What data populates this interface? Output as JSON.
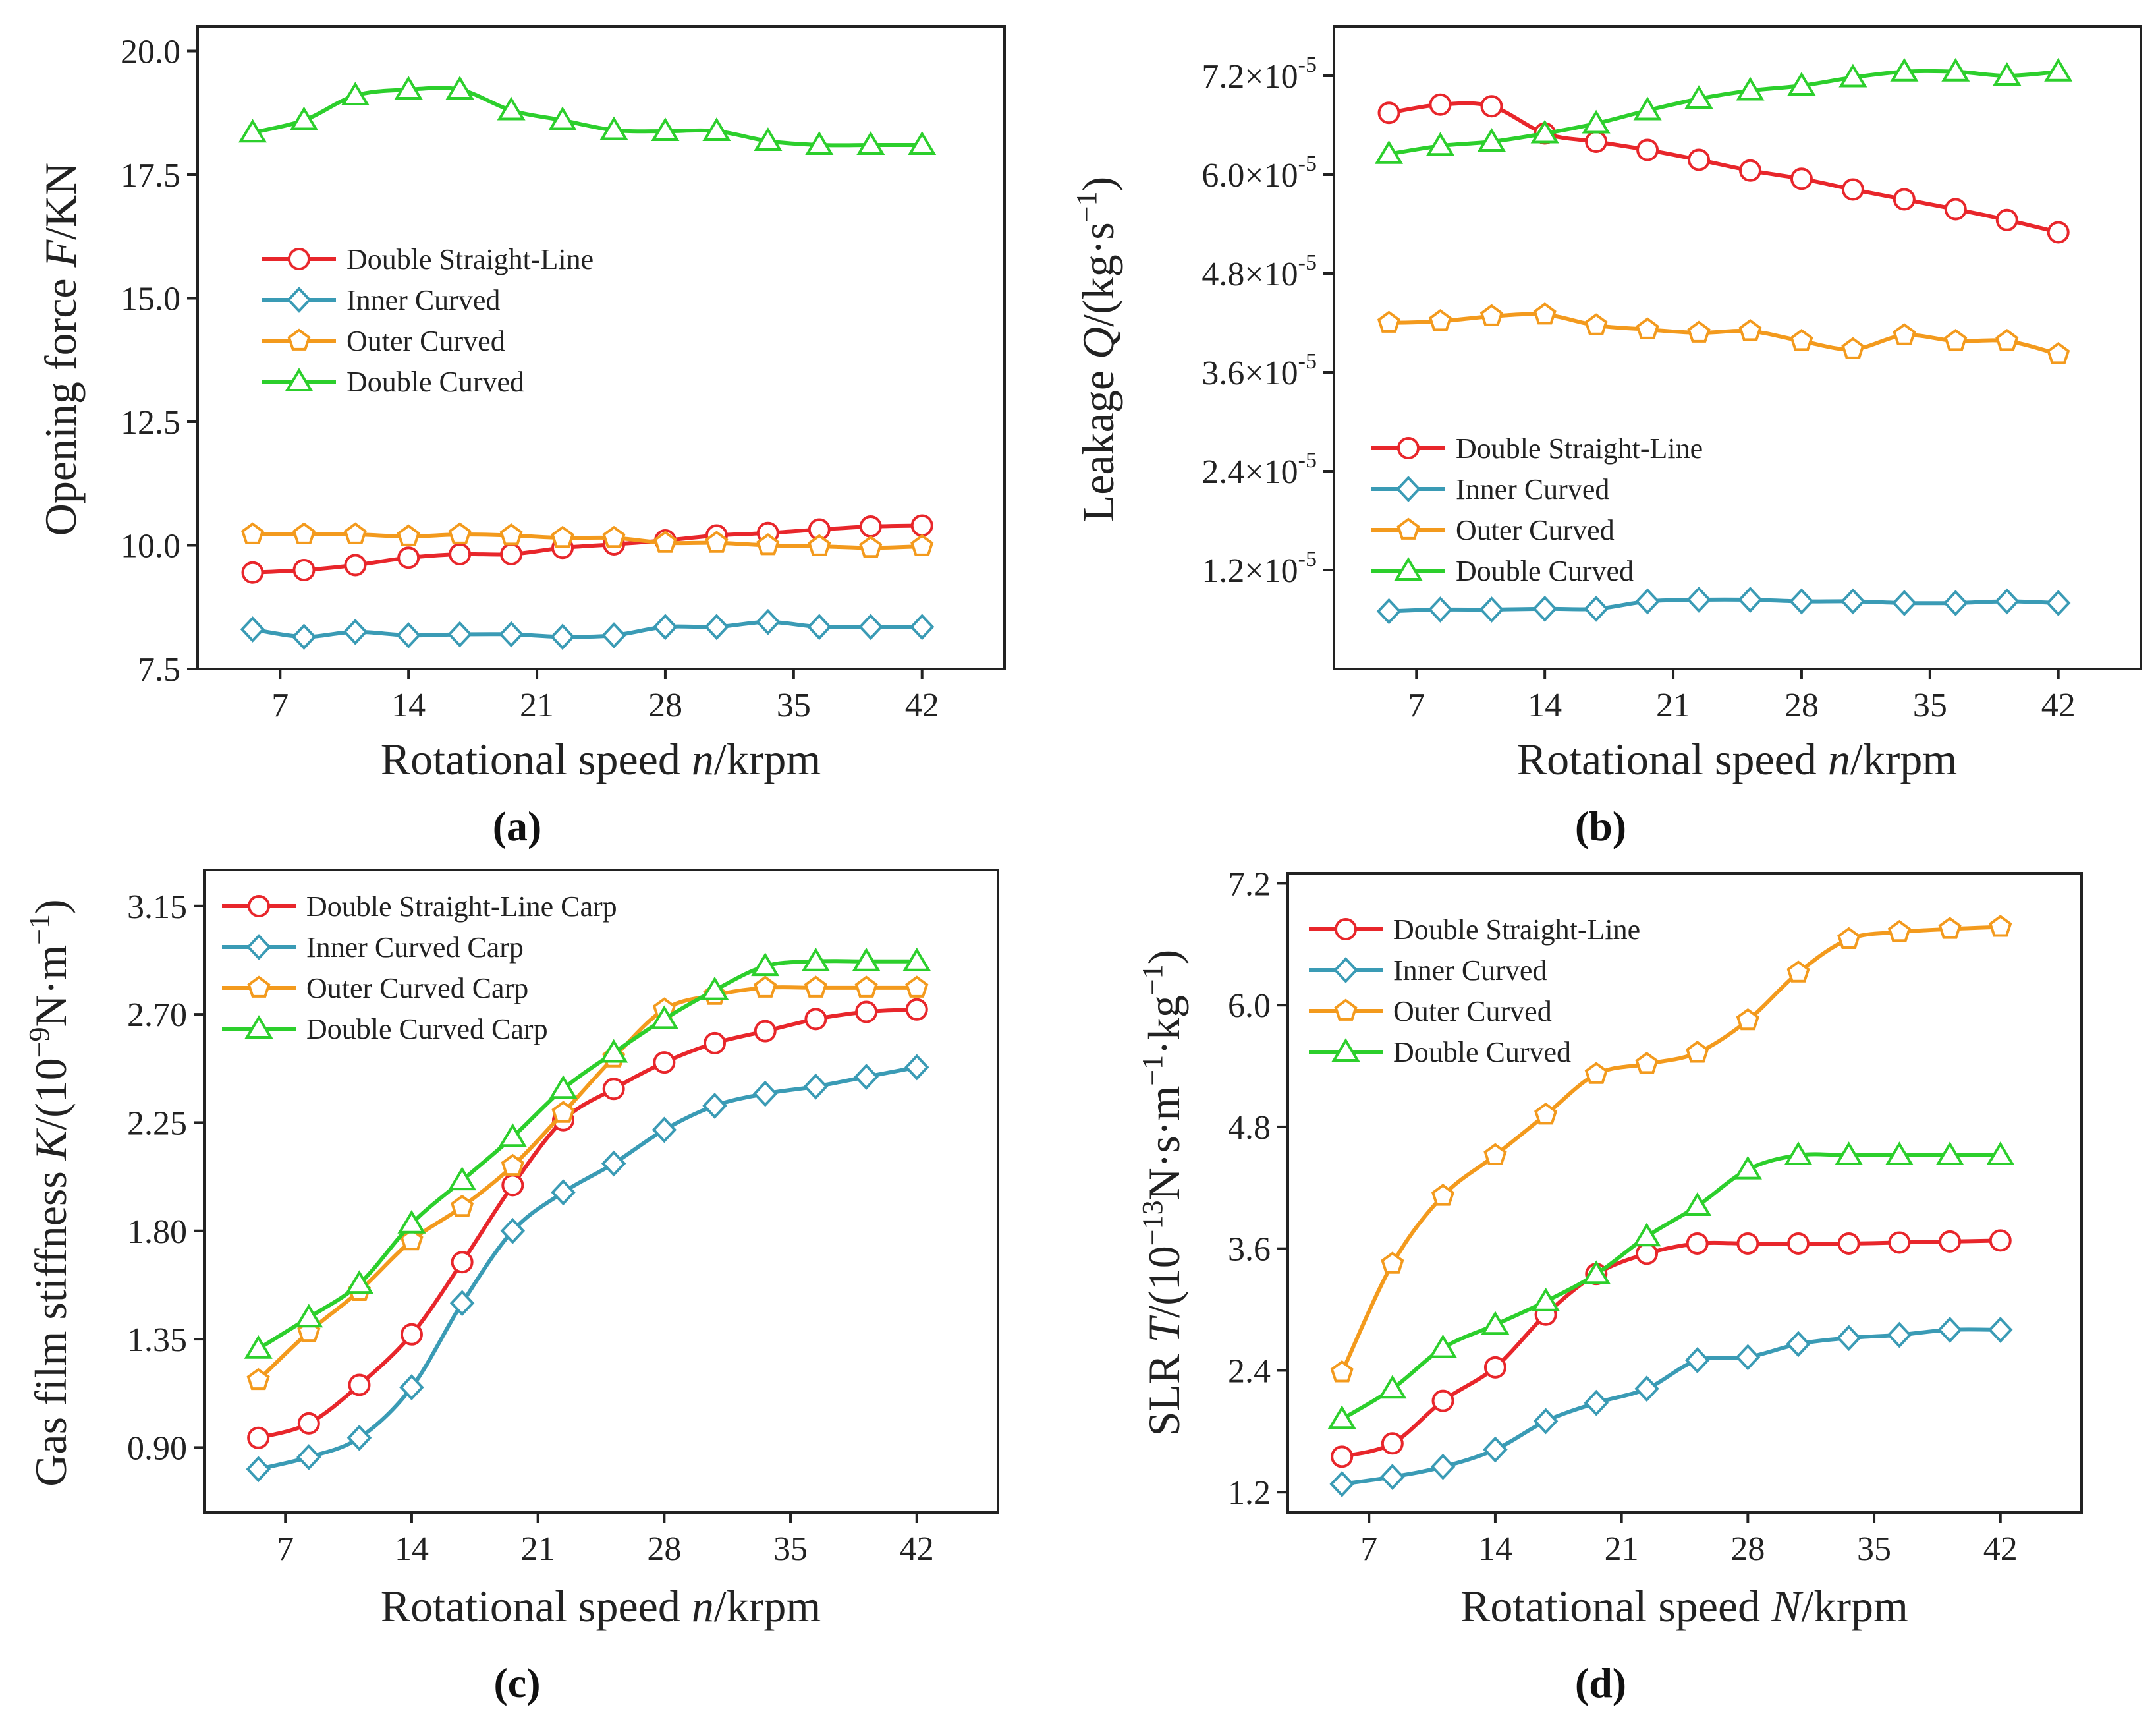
{
  "colors": {
    "double_straight_line": "#e8262b",
    "inner_curved": "#3a9bb5",
    "outer_curved": "#f39a1d",
    "double_curved": "#2ccf2c"
  },
  "chart_data": [
    {
      "panel": "(a)",
      "type": "line",
      "xlabel": {
        "pre": "Rotational speed ",
        "var": "n",
        "post": "/krpm"
      },
      "ylabel": {
        "pre": "Opening force ",
        "var": "F",
        "post": "/KN"
      },
      "xlim": [
        2.5,
        46.5
      ],
      "ylim": [
        7.5,
        20.5
      ],
      "xticks": [
        7,
        14,
        21,
        28,
        35,
        42
      ],
      "xtick_labels": [
        "7",
        "14",
        "21",
        "28",
        "35",
        "42"
      ],
      "yticks": [
        7.5,
        10.0,
        12.5,
        15.0,
        17.5,
        20.0
      ],
      "ytick_labels": [
        "7.5",
        "10.0",
        "12.5",
        "15.0",
        "17.5",
        "20.0"
      ],
      "x": [
        5.5,
        8.3,
        11.1,
        14.0,
        16.8,
        19.6,
        22.4,
        25.2,
        28.0,
        30.8,
        33.6,
        36.4,
        39.2,
        42.0
      ],
      "legend": {
        "position": "center-left"
      },
      "series": [
        {
          "name": "Double Straight-Line",
          "marker": "circle",
          "color_key": "double_straight_line",
          "values": [
            9.45,
            9.5,
            9.6,
            9.75,
            9.82,
            9.82,
            9.95,
            10.02,
            10.1,
            10.2,
            10.25,
            10.32,
            10.38,
            10.4
          ]
        },
        {
          "name": "Inner Curved",
          "marker": "diamond",
          "color_key": "inner_curved",
          "values": [
            8.3,
            8.15,
            8.25,
            8.18,
            8.2,
            8.2,
            8.15,
            8.18,
            8.35,
            8.35,
            8.45,
            8.35,
            8.35,
            8.35
          ]
        },
        {
          "name": "Outer Curved",
          "marker": "pentagon",
          "color_key": "outer_curved",
          "values": [
            10.22,
            10.22,
            10.22,
            10.18,
            10.22,
            10.2,
            10.15,
            10.15,
            10.05,
            10.05,
            10.0,
            9.98,
            9.95,
            9.98
          ]
        },
        {
          "name": "Double Curved",
          "marker": "triangle",
          "color_key": "double_curved",
          "values": [
            18.35,
            18.6,
            19.1,
            19.22,
            19.22,
            18.8,
            18.6,
            18.4,
            18.38,
            18.38,
            18.18,
            18.1,
            18.1,
            18.1
          ]
        }
      ]
    },
    {
      "panel": "(b)",
      "type": "line",
      "xlabel": {
        "pre": "Rotational speed ",
        "var": "n",
        "post": "/krpm"
      },
      "ylabel": {
        "pre": "Leakage ",
        "var": "Q",
        "post": "/(kg·s",
        "sup": "−1",
        "close": ")"
      },
      "y_multiplier_exponent": "-5",
      "xlim": [
        2.5,
        46.5
      ],
      "ylim": [
        0.0,
        7.8
      ],
      "xticks": [
        7,
        14,
        21,
        28,
        35,
        42
      ],
      "xtick_labels": [
        "7",
        "14",
        "21",
        "28",
        "35",
        "42"
      ],
      "yticks": [
        1.2,
        2.4,
        3.6,
        4.8,
        6.0,
        7.2
      ],
      "ytick_labels": [
        "1.2×10",
        "2.4×10",
        "3.6×10",
        "4.8×10",
        "6.0×10",
        "7.2×10"
      ],
      "x": [
        5.5,
        8.3,
        11.1,
        14.0,
        16.8,
        19.6,
        22.4,
        25.2,
        28.0,
        30.8,
        33.6,
        36.4,
        39.2,
        42.0
      ],
      "legend": {
        "position": "bottom-left"
      },
      "series": [
        {
          "name": "Double Straight-Line",
          "marker": "circle",
          "color_key": "double_straight_line",
          "values": [
            6.75,
            6.85,
            6.83,
            6.5,
            6.4,
            6.3,
            6.18,
            6.05,
            5.95,
            5.82,
            5.7,
            5.58,
            5.45,
            5.3
          ]
        },
        {
          "name": "Inner Curved",
          "marker": "diamond",
          "color_key": "inner_curved",
          "values": [
            0.7,
            0.72,
            0.72,
            0.73,
            0.73,
            0.82,
            0.84,
            0.84,
            0.82,
            0.82,
            0.8,
            0.8,
            0.82,
            0.8
          ]
        },
        {
          "name": "Outer Curved",
          "marker": "pentagon",
          "color_key": "outer_curved",
          "values": [
            4.2,
            4.22,
            4.28,
            4.3,
            4.17,
            4.12,
            4.08,
            4.1,
            3.98,
            3.88,
            4.05,
            3.98,
            3.98,
            3.82
          ]
        },
        {
          "name": "Double Curved",
          "marker": "triangle",
          "color_key": "double_curved",
          "values": [
            6.25,
            6.35,
            6.4,
            6.5,
            6.62,
            6.78,
            6.92,
            7.02,
            7.08,
            7.18,
            7.25,
            7.25,
            7.2,
            7.25
          ]
        }
      ]
    },
    {
      "panel": "(c)",
      "type": "line",
      "xlabel": {
        "pre": "Rotational speed ",
        "var": "n",
        "post": "/krpm"
      },
      "ylabel": {
        "pre": "Gas film stiffness ",
        "var": "K",
        "post": "/(10",
        "sup": "−9",
        "post2": "N·m",
        "sup2": "−1",
        "close": ")"
      },
      "xlim": [
        2.5,
        46.5
      ],
      "ylim": [
        0.63,
        3.3
      ],
      "xticks": [
        7,
        14,
        21,
        28,
        35,
        42
      ],
      "xtick_labels": [
        "7",
        "14",
        "21",
        "28",
        "35",
        "42"
      ],
      "yticks": [
        0.9,
        1.35,
        1.8,
        2.25,
        2.7,
        3.15
      ],
      "ytick_labels": [
        "0.90",
        "1.35",
        "1.80",
        "2.25",
        "2.70",
        "3.15"
      ],
      "x": [
        5.5,
        8.3,
        11.1,
        14.0,
        16.8,
        19.6,
        22.4,
        25.2,
        28.0,
        30.8,
        33.6,
        36.4,
        39.2,
        42.0
      ],
      "legend": {
        "position": "top-left"
      },
      "series": [
        {
          "name": "Double Straight-Line Carp",
          "marker": "circle",
          "color_key": "double_straight_line",
          "values": [
            0.94,
            1.0,
            1.16,
            1.37,
            1.67,
            1.99,
            2.26,
            2.39,
            2.5,
            2.58,
            2.63,
            2.68,
            2.71,
            2.72
          ]
        },
        {
          "name": "Inner Curved Carp",
          "marker": "diamond",
          "color_key": "inner_curved",
          "values": [
            0.81,
            0.86,
            0.94,
            1.15,
            1.5,
            1.8,
            1.96,
            2.08,
            2.22,
            2.32,
            2.37,
            2.4,
            2.44,
            2.48
          ]
        },
        {
          "name": "Outer Curved Carp",
          "marker": "pentagon",
          "color_key": "outer_curved",
          "values": [
            1.18,
            1.38,
            1.55,
            1.76,
            1.9,
            2.07,
            2.29,
            2.52,
            2.72,
            2.78,
            2.81,
            2.81,
            2.81,
            2.81
          ]
        },
        {
          "name": "Double Curved Carp",
          "marker": "triangle",
          "color_key": "double_curved",
          "values": [
            1.31,
            1.44,
            1.58,
            1.83,
            2.01,
            2.19,
            2.39,
            2.54,
            2.68,
            2.8,
            2.9,
            2.92,
            2.92,
            2.92
          ]
        }
      ]
    },
    {
      "panel": "(d)",
      "type": "line",
      "xlabel": {
        "pre": "Rotational speed ",
        "var": "N",
        "post": "/krpm"
      },
      "ylabel": {
        "pre": "SLR ",
        "var": "T",
        "post": "/(10",
        "sup": "−13",
        "post2": "N·s·m",
        "sup2": "−1",
        "post3": "·kg",
        "sup3": "−1",
        "close": ")"
      },
      "xlim": [
        2.5,
        46.5
      ],
      "ylim": [
        1.0,
        7.3
      ],
      "xticks": [
        7,
        14,
        21,
        28,
        35,
        42
      ],
      "xtick_labels": [
        "7",
        "14",
        "21",
        "28",
        "35",
        "42"
      ],
      "yticks": [
        1.2,
        2.4,
        3.6,
        4.8,
        6.0,
        7.2
      ],
      "ytick_labels": [
        "1.2",
        "2.4",
        "3.6",
        "4.8",
        "6.0",
        "7.2"
      ],
      "x": [
        5.5,
        8.3,
        11.1,
        14.0,
        16.8,
        19.6,
        22.4,
        25.2,
        28.0,
        30.8,
        33.6,
        36.4,
        39.2,
        42.0
      ],
      "legend": {
        "position": "top-left"
      },
      "series": [
        {
          "name": "Double Straight-Line",
          "marker": "circle",
          "color_key": "double_straight_line",
          "values": [
            1.55,
            1.68,
            2.1,
            2.43,
            2.95,
            3.35,
            3.55,
            3.65,
            3.65,
            3.65,
            3.65,
            3.66,
            3.67,
            3.68
          ]
        },
        {
          "name": "Inner Curved",
          "marker": "diamond",
          "color_key": "inner_curved",
          "values": [
            1.28,
            1.35,
            1.45,
            1.62,
            1.9,
            2.08,
            2.22,
            2.5,
            2.53,
            2.66,
            2.72,
            2.75,
            2.8,
            2.8
          ]
        },
        {
          "name": "Outer Curved",
          "marker": "pentagon",
          "color_key": "outer_curved",
          "values": [
            2.38,
            3.45,
            4.12,
            4.52,
            4.92,
            5.32,
            5.42,
            5.53,
            5.85,
            6.32,
            6.65,
            6.72,
            6.75,
            6.77
          ]
        },
        {
          "name": "Double Curved",
          "marker": "triangle",
          "color_key": "double_curved",
          "values": [
            1.92,
            2.22,
            2.62,
            2.85,
            3.08,
            3.35,
            3.72,
            4.02,
            4.38,
            4.52,
            4.52,
            4.52,
            4.52,
            4.52
          ]
        }
      ]
    }
  ]
}
